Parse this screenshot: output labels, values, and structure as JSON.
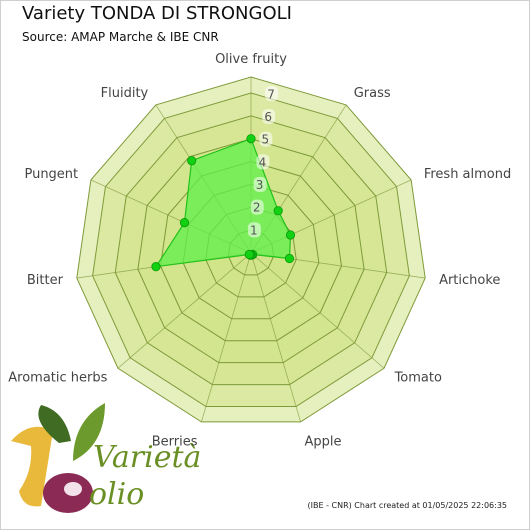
{
  "header": {
    "title": "Variety TONDA DI STRONGOLI",
    "subtitle": "Source: AMAP Marche & IBE CNR"
  },
  "footer": {
    "credit": "(IBE - CNR) Chart created at 01/05/2025 22:06:35"
  },
  "logo": {
    "line1": "Varietà",
    "line2": "olio"
  },
  "colors": {
    "ring_fill": "#d2e38a",
    "ring_stroke": "#7f9a3a",
    "series_fill": "#5ef04a",
    "series_stroke": "#22c21a",
    "point": "#12d012"
  },
  "chart_data": {
    "type": "radar",
    "axes": [
      "Olive fruity",
      "Grass",
      "Fresh almond",
      "Artichoke",
      "Tomato",
      "Apple",
      "Berries",
      "Aromatic herbs",
      "Bitter",
      "Pungent",
      "Fluidity"
    ],
    "ticks": [
      1,
      2,
      3,
      4,
      5,
      6,
      7
    ],
    "range": [
      0,
      7.7
    ],
    "series": [
      {
        "values": [
          5.0,
          2.2,
          1.9,
          1.7,
          0.1,
          0.1,
          0.1,
          0.1,
          4.2,
          3.2,
          4.8
        ]
      }
    ]
  }
}
